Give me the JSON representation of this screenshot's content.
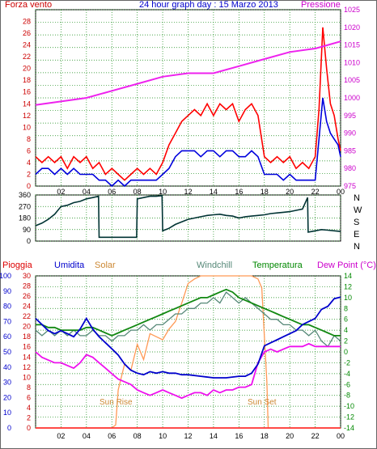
{
  "title": "24 hour graph day : 15 Marzo 2013",
  "colors": {
    "wind": "#ff0000",
    "gust_avg": "#0000dd",
    "pressure": "#ee22ee",
    "direction": "#003333",
    "humidity": "#0000cc",
    "solar": "#ff9955",
    "windchill": "#558877",
    "temperature": "#118811",
    "dewpoint": "#ee11ee",
    "rain": "#ff3333",
    "grid": "#118811",
    "axis_left": "#cc0000",
    "axis_right": "#cc00cc",
    "axis_hum": "#0000cc",
    "axis_temp": "#008800",
    "dir_labels": "#000000"
  },
  "chart_data": [
    {
      "type": "line",
      "title": "24 hour graph day : 15 Marzo 2013",
      "left_label": "Forza vento",
      "right_label": "Pressione",
      "x_ticks": [
        "02",
        "04",
        "06",
        "08",
        "10",
        "12",
        "14",
        "16",
        "18",
        "20",
        "22",
        "00"
      ],
      "y_left_ticks": [
        "28",
        "26",
        "24",
        "22",
        "20",
        "18",
        "16",
        "14",
        "12",
        "10",
        "8",
        "6",
        "4",
        "2",
        "0"
      ],
      "y_right_ticks": [
        "1025",
        "1020",
        "1015",
        "1010",
        "1005",
        "1000",
        "995",
        "990",
        "985",
        "980",
        "975"
      ],
      "ylim_left": [
        0,
        30
      ],
      "ylim_right": [
        975,
        1025
      ],
      "xlim": [
        0,
        24
      ],
      "grid": true,
      "series": [
        {
          "key": "wind",
          "axis": "left",
          "x": [
            0,
            0.5,
            1,
            1.5,
            2,
            2.5,
            3,
            3.5,
            4,
            4.5,
            5,
            5.5,
            6,
            6.5,
            7,
            7.5,
            8,
            8.5,
            9,
            9.5,
            10,
            10.5,
            11,
            11.5,
            12,
            12.5,
            13,
            13.5,
            14,
            14.5,
            15,
            15.5,
            16,
            16.5,
            17,
            17.5,
            18,
            18.5,
            19,
            19.5,
            20,
            20.5,
            21,
            21.5,
            22,
            22.3,
            22.6,
            22.9,
            23.2,
            23.5,
            23.8,
            24
          ],
          "values": [
            5,
            4,
            5,
            4,
            5,
            3,
            5,
            4,
            5,
            3,
            4,
            2,
            3,
            2,
            1,
            2,
            3,
            2,
            3,
            2,
            4,
            7,
            9,
            11,
            12,
            13,
            12,
            14,
            12,
            14,
            13,
            14,
            11,
            13,
            14,
            12,
            5,
            4,
            5,
            4,
            5,
            3,
            4,
            3,
            5,
            13,
            27,
            20,
            14,
            12,
            8,
            6
          ]
        },
        {
          "key": "gust_avg",
          "axis": "left",
          "x": [
            0,
            0.5,
            1,
            1.5,
            2,
            2.5,
            3,
            3.5,
            4,
            4.5,
            5,
            5.5,
            6,
            6.5,
            7,
            7.5,
            8,
            8.5,
            9,
            9.5,
            10,
            10.5,
            11,
            11.5,
            12,
            12.5,
            13,
            13.5,
            14,
            14.5,
            15,
            15.5,
            16,
            16.5,
            17,
            17.5,
            18,
            18.5,
            19,
            19.5,
            20,
            20.5,
            21,
            21.5,
            22,
            22.3,
            22.6,
            22.9,
            23.2,
            23.5,
            23.8,
            24
          ],
          "values": [
            2,
            3,
            3,
            2,
            3,
            2,
            3,
            2,
            2,
            2,
            1,
            1,
            0,
            1,
            0,
            1,
            1,
            1,
            1,
            1,
            2,
            3,
            5,
            6,
            6,
            6,
            5,
            6,
            6,
            5,
            6,
            6,
            5,
            5,
            6,
            5,
            2,
            2,
            2,
            1,
            2,
            1,
            1,
            1,
            1,
            8,
            15,
            11,
            9,
            8,
            7,
            5
          ]
        },
        {
          "key": "pressure",
          "axis": "right",
          "x": [
            0,
            2,
            4,
            6,
            8,
            10,
            12,
            14,
            16,
            18,
            20,
            22,
            23,
            24
          ],
          "values": [
            998,
            999,
            1000,
            1002,
            1004,
            1006,
            1007,
            1007,
            1009,
            1011,
            1013,
            1014,
            1015,
            1016
          ]
        }
      ]
    },
    {
      "type": "line",
      "title": "",
      "y_left_ticks": [
        "360",
        "270",
        "180",
        "90",
        "0"
      ],
      "y_right_labels": [
        "N",
        "W",
        "S",
        "E",
        "N"
      ],
      "ylim": [
        0,
        360
      ],
      "xlim": [
        0,
        24
      ],
      "series": [
        {
          "key": "direction",
          "axis": "left",
          "x": [
            0,
            0.5,
            1,
            1.5,
            2,
            2.5,
            3,
            3.5,
            4,
            4.5,
            4.95,
            5,
            5.5,
            6,
            6.5,
            7,
            7.5,
            7.95,
            8,
            8.5,
            9,
            9.5,
            9.95,
            10,
            10.5,
            11,
            11.5,
            12,
            12.5,
            13,
            13.5,
            14,
            14.5,
            15,
            15.5,
            16,
            16.5,
            17,
            17.5,
            18,
            18.5,
            19,
            19.5,
            20,
            20.5,
            21,
            21.4,
            21.45,
            22,
            22.5,
            23,
            23.5,
            24
          ],
          "values": [
            120,
            140,
            170,
            210,
            270,
            280,
            300,
            310,
            330,
            340,
            350,
            30,
            30,
            30,
            30,
            30,
            30,
            30,
            330,
            340,
            350,
            350,
            355,
            80,
            100,
            130,
            150,
            170,
            180,
            190,
            200,
            205,
            210,
            200,
            195,
            180,
            190,
            195,
            200,
            205,
            215,
            220,
            225,
            230,
            240,
            250,
            340,
            70,
            80,
            90,
            85,
            80,
            75
          ]
        }
      ]
    },
    {
      "type": "line",
      "title": "",
      "left_labels": [
        "Pioggia",
        "Umidita",
        "Solar"
      ],
      "right_labels": [
        "Windchill",
        "Temperatura",
        "Dew Point (°C)"
      ],
      "y_rain_ticks": [
        "30",
        "28",
        "26",
        "24",
        "22",
        "20",
        "18",
        "16",
        "14",
        "12",
        "10",
        "8",
        "6",
        "4",
        "2",
        "0"
      ],
      "y_hum_ticks": [
        "100",
        "90",
        "80",
        "70",
        "60",
        "50",
        "40",
        "30",
        "20",
        "10",
        "0"
      ],
      "y_temp_ticks": [
        "14",
        "12",
        "10",
        "8",
        "6",
        "4",
        "2",
        "0",
        "-2",
        "-4",
        "-6",
        "-8",
        "-10",
        "-12",
        "-14"
      ],
      "ylim_hum": [
        0,
        100
      ],
      "ylim_temp": [
        -14,
        14
      ],
      "xlim": [
        0,
        24
      ],
      "annotations": [
        "Sun Rise",
        "Sun Set"
      ],
      "series": [
        {
          "key": "humidity",
          "axis": "hum",
          "x": [
            0,
            0.5,
            1,
            1.5,
            2,
            2.5,
            3,
            3.5,
            4,
            4.5,
            5,
            5.5,
            6,
            6.5,
            7,
            7.5,
            8,
            8.5,
            9,
            9.5,
            10,
            10.5,
            11,
            11.5,
            12,
            13,
            14,
            15,
            16,
            16.5,
            17,
            17.5,
            18,
            18.5,
            19,
            19.5,
            20,
            20.5,
            21,
            21.5,
            22,
            22.5,
            23,
            23.5,
            24
          ],
          "values": [
            72,
            68,
            64,
            62,
            64,
            62,
            60,
            65,
            72,
            65,
            60,
            56,
            52,
            48,
            42,
            38,
            36,
            35,
            37,
            36,
            37,
            36,
            36,
            35,
            35,
            34,
            33,
            33,
            34,
            34,
            36,
            42,
            54,
            56,
            58,
            60,
            62,
            64,
            68,
            70,
            72,
            78,
            80,
            85,
            86
          ]
        },
        {
          "key": "solar",
          "axis": "hum",
          "x": [
            0,
            6,
            6.3,
            6.5,
            7,
            7.5,
            8,
            8.5,
            9,
            9.5,
            10,
            10.5,
            11,
            11.5,
            12,
            12.5,
            13,
            14,
            15,
            16,
            17,
            17.5,
            17.8,
            18,
            18.2,
            18.3,
            24
          ],
          "values": [
            0,
            0,
            2,
            25,
            42,
            38,
            55,
            45,
            62,
            60,
            58,
            65,
            70,
            82,
            95,
            98,
            100,
            100,
            100,
            100,
            100,
            98,
            92,
            60,
            30,
            0,
            0
          ]
        },
        {
          "key": "windchill",
          "axis": "temp",
          "x": [
            0,
            0.5,
            1,
            1.5,
            2,
            2.5,
            3,
            3.5,
            4,
            4.5,
            5,
            5.5,
            6,
            6.5,
            7,
            7.5,
            8,
            8.5,
            9,
            9.5,
            10,
            10.5,
            11,
            11.5,
            12,
            12.5,
            13,
            13.5,
            14,
            14.5,
            15,
            15.5,
            16,
            16.5,
            17,
            17.5,
            18,
            18.5,
            19,
            19.5,
            20,
            20.5,
            21,
            21.5,
            22,
            22.5,
            23,
            23.5,
            24
          ],
          "values": [
            4,
            3,
            4,
            3,
            4,
            3,
            4,
            3,
            3,
            4,
            3,
            3,
            2,
            3,
            3,
            4,
            4,
            5,
            4,
            5,
            5,
            6,
            7,
            7,
            8,
            8,
            9,
            9,
            10,
            9,
            11,
            10,
            9,
            10,
            9,
            8,
            7,
            6,
            6,
            5,
            5,
            4,
            4,
            3,
            4,
            2,
            1,
            3,
            2
          ]
        },
        {
          "key": "temperature",
          "axis": "temp",
          "x": [
            0,
            0.5,
            1,
            1.5,
            2,
            2.5,
            3,
            3.5,
            4,
            4.5,
            5,
            5.5,
            6,
            6.5,
            7,
            7.5,
            8,
            8.5,
            9,
            9.5,
            10,
            10.5,
            11,
            11.5,
            12,
            12.5,
            13,
            13.5,
            14,
            14.5,
            15,
            15.5,
            16,
            16.5,
            17,
            17.5,
            18,
            18.5,
            19,
            19.5,
            20,
            20.5,
            21,
            21.5,
            22,
            22.5,
            23,
            23.5,
            24
          ],
          "values": [
            5,
            5,
            4.5,
            4.5,
            4,
            4,
            4,
            4,
            4.5,
            4.5,
            4,
            3.5,
            3,
            3.5,
            4,
            4.5,
            5,
            5.5,
            6,
            6.5,
            7,
            7.5,
            8,
            8.5,
            9,
            9.5,
            10,
            10,
            10.5,
            11,
            11.5,
            11,
            10,
            9.5,
            9,
            8.5,
            8,
            7.5,
            7,
            6.5,
            6,
            5.5,
            5,
            5,
            4.5,
            4,
            3.5,
            3,
            3
          ]
        },
        {
          "key": "dewpoint",
          "axis": "temp",
          "x": [
            0,
            0.5,
            1,
            1.5,
            2,
            2.5,
            3,
            3.5,
            4,
            4.5,
            5,
            5.5,
            6,
            6.5,
            7,
            7.5,
            8,
            8.5,
            9,
            9.5,
            10,
            10.5,
            11,
            11.5,
            12,
            12.5,
            13,
            13.5,
            14,
            14.5,
            15,
            15.5,
            16,
            16.5,
            17,
            17.5,
            18,
            18.5,
            19,
            19.5,
            20,
            20.5,
            21,
            21.5,
            22,
            22.5,
            23,
            23.5,
            24
          ],
          "values": [
            0,
            -1,
            -1.5,
            -2,
            -2,
            -2.5,
            -3,
            -2,
            -0.5,
            -1,
            -2,
            -3,
            -4,
            -5,
            -5.5,
            -6,
            -7,
            -7.5,
            -8,
            -7.5,
            -7,
            -7.5,
            -8,
            -8.5,
            -8,
            -7.5,
            -7.5,
            -8,
            -7,
            -7.5,
            -7,
            -7,
            -6.5,
            -6.5,
            -6,
            -2,
            0,
            0.5,
            0,
            0.5,
            1,
            1,
            1,
            1.5,
            1,
            1,
            1,
            1,
            1
          ]
        },
        {
          "key": "rain",
          "axis": "hum",
          "x": [
            0,
            24
          ],
          "values": [
            0,
            0
          ]
        }
      ]
    }
  ]
}
